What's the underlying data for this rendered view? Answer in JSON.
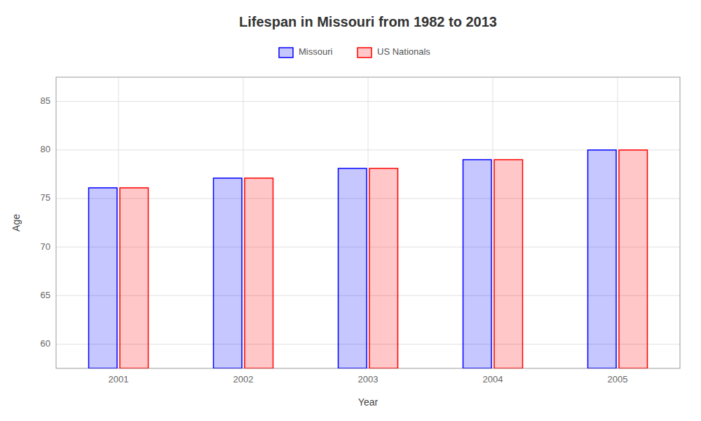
{
  "chart_data": {
    "type": "bar",
    "title": "Lifespan in Missouri from 1982 to 2013",
    "xlabel": "Year",
    "ylabel": "Age",
    "categories": [
      "2001",
      "2002",
      "2003",
      "2004",
      "2005"
    ],
    "series": [
      {
        "name": "Missouri",
        "color": "#0000ff",
        "values": [
          76.1,
          77.1,
          78.1,
          79.0,
          80.0
        ]
      },
      {
        "name": "US Nationals",
        "color": "#ff0000",
        "values": [
          76.1,
          77.1,
          78.1,
          79.0,
          80.0
        ]
      }
    ],
    "ylim": [
      57.5,
      87.5
    ],
    "yticks": [
      60,
      65,
      70,
      75,
      80,
      85
    ],
    "grid": true,
    "legend": "top"
  }
}
